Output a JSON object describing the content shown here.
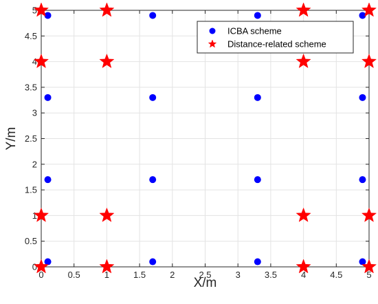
{
  "chart_data": {
    "type": "scatter",
    "xlabel": "X/m",
    "ylabel": "Y/m",
    "xlim": [
      0,
      5
    ],
    "ylim": [
      0,
      5
    ],
    "x_ticks": [
      "0",
      "0.5",
      "1",
      "1.5",
      "2",
      "2.5",
      "3",
      "3.5",
      "4",
      "4.5",
      "5"
    ],
    "y_ticks": [
      "0",
      "0.5",
      "1",
      "1.5",
      "2",
      "2.5",
      "3",
      "3.5",
      "4",
      "4.5",
      "5"
    ],
    "grid": true,
    "legend_position": "top-right",
    "series": [
      {
        "name": "ICBA scheme",
        "marker": "circle",
        "color": "#0000ff",
        "points": [
          [
            0.1,
            4.9
          ],
          [
            1.7,
            4.9
          ],
          [
            3.3,
            4.9
          ],
          [
            4.9,
            4.9
          ],
          [
            0.1,
            3.3
          ],
          [
            1.7,
            3.3
          ],
          [
            3.3,
            3.3
          ],
          [
            4.9,
            3.3
          ],
          [
            0.1,
            1.7
          ],
          [
            1.7,
            1.7
          ],
          [
            3.3,
            1.7
          ],
          [
            4.9,
            1.7
          ],
          [
            0.1,
            0.1
          ],
          [
            1.7,
            0.1
          ],
          [
            3.3,
            0.1
          ],
          [
            4.9,
            0.1
          ]
        ]
      },
      {
        "name": "Distance-related scheme",
        "marker": "star",
        "color": "#ff0000",
        "points": [
          [
            0,
            5
          ],
          [
            1,
            5
          ],
          [
            4,
            5
          ],
          [
            5,
            5
          ],
          [
            0,
            4
          ],
          [
            1,
            4
          ],
          [
            4,
            4
          ],
          [
            5,
            4
          ],
          [
            0,
            1
          ],
          [
            1,
            1
          ],
          [
            4,
            1
          ],
          [
            5,
            1
          ],
          [
            0,
            0
          ],
          [
            1,
            0
          ],
          [
            4,
            0
          ],
          [
            5,
            0
          ]
        ]
      }
    ]
  }
}
